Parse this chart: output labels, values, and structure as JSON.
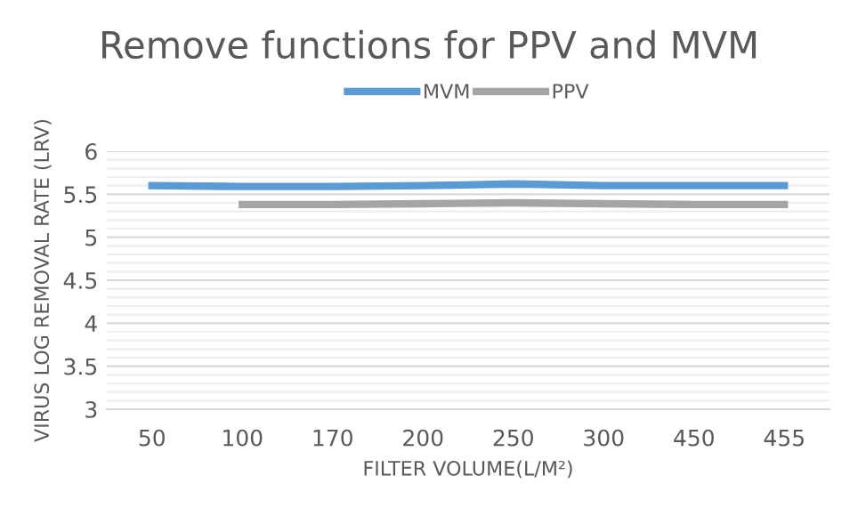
{
  "chart_data": {
    "type": "line",
    "title": "Remove functions for PPV and MVM",
    "xlabel": "FILTER VOLUME(L/M²)",
    "ylabel": "VIRUS LOG REMOVAL RATE (LRV)",
    "categories": [
      "50",
      "100",
      "170",
      "200",
      "250",
      "300",
      "450",
      "455"
    ],
    "series": [
      {
        "name": "MVM",
        "color": "#5b9bd5",
        "values": [
          5.6,
          5.59,
          5.59,
          5.6,
          5.62,
          5.6,
          5.6,
          5.6
        ]
      },
      {
        "name": "PPV",
        "color": "#a5a5a5",
        "values": [
          null,
          5.38,
          5.38,
          5.39,
          5.4,
          5.39,
          5.38,
          5.38
        ]
      }
    ],
    "ylim": [
      3,
      6
    ],
    "yticks": [
      3,
      {
        "value": 3.1,
        "label": null
      },
      {
        "value": 3.2,
        "label": null
      },
      {
        "value": 3.3,
        "label": null
      },
      {
        "value": 3.4,
        "label": null
      },
      3.5,
      {
        "value": 3.6,
        "label": null
      },
      {
        "value": 3.7,
        "label": null
      },
      {
        "value": 3.8,
        "label": null
      },
      {
        "value": 3.9,
        "label": null
      },
      4,
      {
        "value": 4.1,
        "label": null
      },
      {
        "value": 4.2,
        "label": null
      },
      {
        "value": 4.3,
        "label": null
      },
      {
        "value": 4.4,
        "label": null
      },
      4.5,
      {
        "value": 4.6,
        "label": null
      },
      {
        "value": 4.7,
        "label": null
      },
      {
        "value": 4.8,
        "label": null
      },
      {
        "value": 4.9,
        "label": null
      },
      5,
      {
        "value": 5.1,
        "label": null
      },
      {
        "value": 5.2,
        "label": null
      },
      {
        "value": 5.3,
        "label": null
      },
      {
        "value": 5.4,
        "label": null
      },
      5.5,
      {
        "value": 5.6,
        "label": null
      },
      {
        "value": 5.7,
        "label": null
      },
      {
        "value": 5.8,
        "label": null
      },
      {
        "value": 5.9,
        "label": null
      },
      6
    ],
    "grid": "y",
    "legend": "top",
    "marker": "none",
    "line_style": "solid"
  }
}
